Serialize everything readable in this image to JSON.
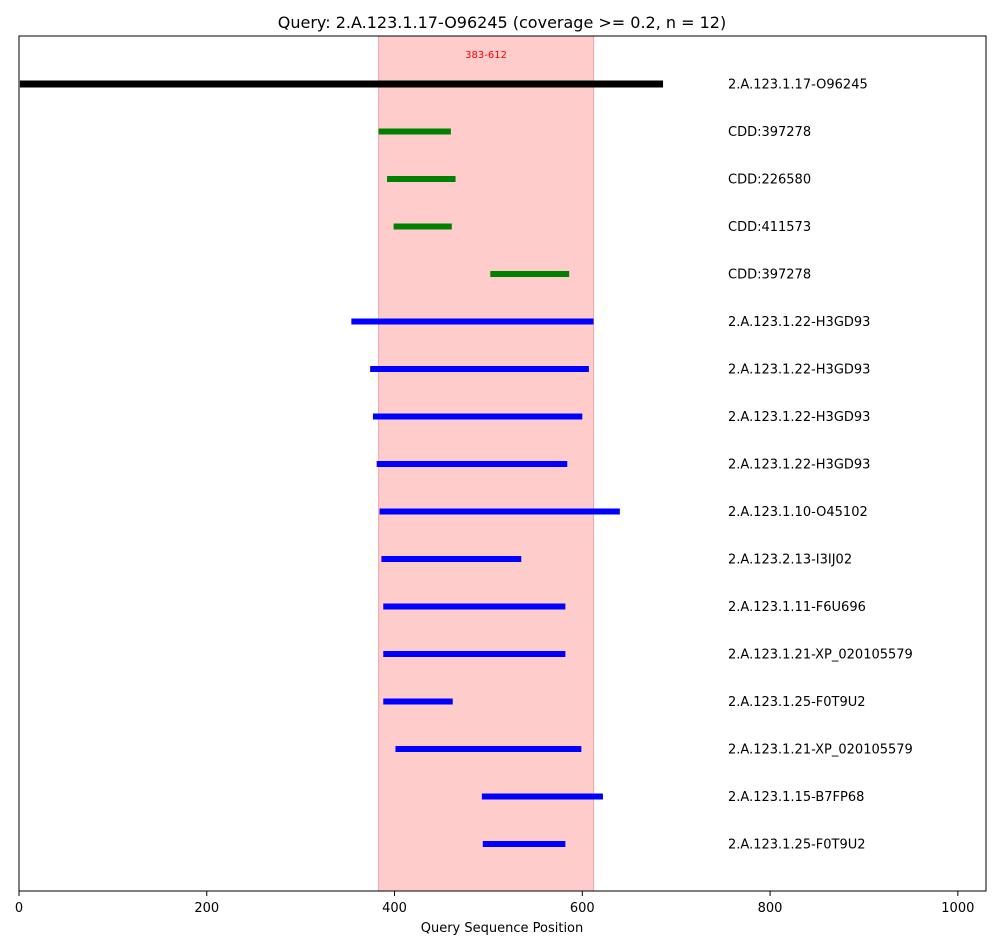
{
  "chart_data": {
    "type": "range-bar",
    "title": "Query: 2.A.123.1.17-O96245 (coverage >= 0.2, n = 12)",
    "xlabel": "Query Sequence Position",
    "xlim": [
      0,
      1030
    ],
    "xticks": [
      0,
      200,
      400,
      600,
      800,
      1000
    ],
    "highlight_region": {
      "start": 383,
      "end": 612,
      "label": "383-612",
      "color": "#ffcccc"
    },
    "colors": {
      "query": "#000000",
      "domain": "#008000",
      "hit": "#0000ff"
    },
    "rows": [
      {
        "label": "2.A.123.1.17-O96245",
        "start": 1,
        "end": 686,
        "kind": "query"
      },
      {
        "label": "CDD:397278",
        "start": 383,
        "end": 460,
        "kind": "domain"
      },
      {
        "label": "CDD:226580",
        "start": 392,
        "end": 465,
        "kind": "domain"
      },
      {
        "label": "CDD:411573",
        "start": 399,
        "end": 461,
        "kind": "domain"
      },
      {
        "label": "CDD:397278",
        "start": 502,
        "end": 586,
        "kind": "domain"
      },
      {
        "label": "2.A.123.1.22-H3GD93",
        "start": 354,
        "end": 612,
        "kind": "hit"
      },
      {
        "label": "2.A.123.1.22-H3GD93",
        "start": 374,
        "end": 607,
        "kind": "hit"
      },
      {
        "label": "2.A.123.1.22-H3GD93",
        "start": 377,
        "end": 600,
        "kind": "hit"
      },
      {
        "label": "2.A.123.1.22-H3GD93",
        "start": 381,
        "end": 584,
        "kind": "hit"
      },
      {
        "label": "2.A.123.1.10-O45102",
        "start": 384,
        "end": 640,
        "kind": "hit"
      },
      {
        "label": "2.A.123.2.13-I3IJ02",
        "start": 386,
        "end": 535,
        "kind": "hit"
      },
      {
        "label": "2.A.123.1.11-F6U696",
        "start": 388,
        "end": 582,
        "kind": "hit"
      },
      {
        "label": "2.A.123.1.21-XP_020105579",
        "start": 388,
        "end": 582,
        "kind": "hit"
      },
      {
        "label": "2.A.123.1.25-F0T9U2",
        "start": 388,
        "end": 462,
        "kind": "hit"
      },
      {
        "label": "2.A.123.1.21-XP_020105579",
        "start": 401,
        "end": 599,
        "kind": "hit"
      },
      {
        "label": "2.A.123.1.15-B7FP68",
        "start": 493,
        "end": 622,
        "kind": "hit"
      },
      {
        "label": "2.A.123.1.25-F0T9U2",
        "start": 494,
        "end": 582,
        "kind": "hit"
      }
    ]
  }
}
